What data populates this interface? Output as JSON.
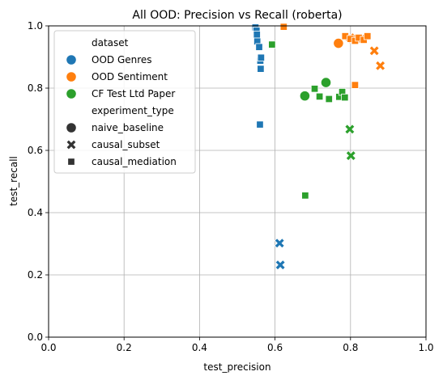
{
  "chart_data": {
    "type": "scatter",
    "title": "All OOD: Precision vs Recall (roberta)",
    "xlabel": "test_precision",
    "ylabel": "test_recall",
    "xlim": [
      0.0,
      1.0
    ],
    "ylim": [
      0.0,
      1.0
    ],
    "xticks": [
      "0.0",
      "0.2",
      "0.4",
      "0.6",
      "0.8",
      "1.0"
    ],
    "yticks": [
      "0.0",
      "0.2",
      "0.4",
      "0.6",
      "0.8",
      "1.0"
    ],
    "grid": true,
    "legend": {
      "placement": "top-left",
      "hue_title": "dataset",
      "style_title": "experiment_type",
      "hue_entries": [
        {
          "name": "OOD Genres",
          "color": "#1f77b4"
        },
        {
          "name": "OOD Sentiment",
          "color": "#ff7f0e"
        },
        {
          "name": "CF Test Ltd Paper",
          "color": "#2ca02c"
        }
      ],
      "style_entries": [
        {
          "name": "naive_baseline",
          "marker": "circle"
        },
        {
          "name": "causal_subset",
          "marker": "x"
        },
        {
          "name": "causal_mediation",
          "marker": "square"
        }
      ]
    },
    "series": [
      {
        "dataset": 0,
        "type": 1,
        "points": [
          [
            0.612,
            0.302
          ],
          [
            0.614,
            0.232
          ]
        ]
      },
      {
        "dataset": 0,
        "type": 2,
        "points": [
          [
            0.548,
            0.995
          ],
          [
            0.551,
            0.985
          ],
          [
            0.552,
            0.972
          ],
          [
            0.553,
            0.95
          ],
          [
            0.558,
            0.932
          ],
          [
            0.561,
            0.888
          ],
          [
            0.563,
            0.898
          ],
          [
            0.562,
            0.862
          ],
          [
            0.56,
            0.683
          ]
        ]
      },
      {
        "dataset": 1,
        "type": 0,
        "points": [
          [
            0.768,
            0.944
          ]
        ]
      },
      {
        "dataset": 1,
        "type": 1,
        "points": [
          [
            0.799,
            0.962
          ],
          [
            0.805,
            0.958
          ],
          [
            0.83,
            0.96
          ],
          [
            0.863,
            0.92
          ],
          [
            0.879,
            0.872
          ]
        ]
      },
      {
        "dataset": 1,
        "type": 2,
        "points": [
          [
            0.623,
            0.997
          ],
          [
            0.786,
            0.967
          ],
          [
            0.8,
            0.958
          ],
          [
            0.812,
            0.952
          ],
          [
            0.822,
            0.962
          ],
          [
            0.835,
            0.955
          ],
          [
            0.845,
            0.967
          ],
          [
            0.812,
            0.81
          ]
        ]
      },
      {
        "dataset": 2,
        "type": 0,
        "points": [
          [
            0.735,
            0.818
          ],
          [
            0.679,
            0.775
          ]
        ]
      },
      {
        "dataset": 2,
        "type": 1,
        "points": [
          [
            0.798,
            0.668
          ],
          [
            0.801,
            0.583
          ]
        ]
      },
      {
        "dataset": 2,
        "type": 2,
        "points": [
          [
            0.592,
            0.94
          ],
          [
            0.705,
            0.798
          ],
          [
            0.718,
            0.773
          ],
          [
            0.743,
            0.765
          ],
          [
            0.77,
            0.772
          ],
          [
            0.778,
            0.788
          ],
          [
            0.785,
            0.77
          ],
          [
            0.68,
            0.455
          ]
        ]
      }
    ]
  }
}
